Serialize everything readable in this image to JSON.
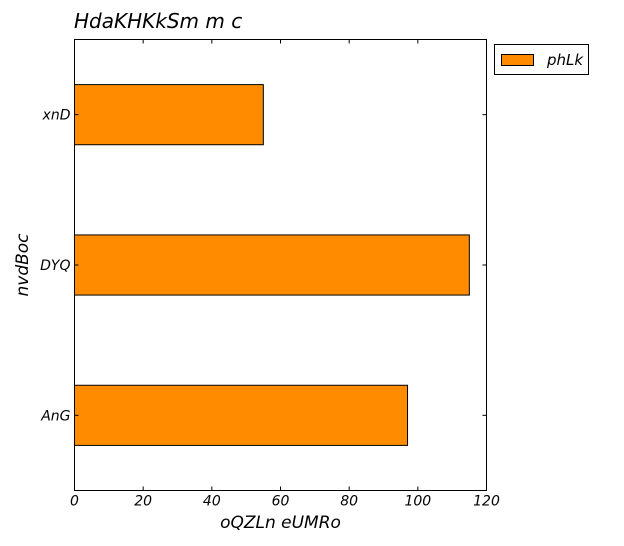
{
  "chart_data": {
    "type": "bar",
    "orientation": "horizontal",
    "title": "HdaKHKkSm m c",
    "xlabel": "oQZLn eUMRo",
    "ylabel": "nvdBoc",
    "categories": [
      "AnG",
      "DYQ",
      "xnD"
    ],
    "series": [
      {
        "name": "phLk",
        "values": [
          97,
          115,
          55
        ],
        "color": "#ff8c00"
      }
    ],
    "xlim": [
      0,
      120
    ],
    "xticks": [
      0,
      20,
      40,
      60,
      80,
      100,
      120
    ],
    "grid": false,
    "legend": "outside-top-right"
  }
}
